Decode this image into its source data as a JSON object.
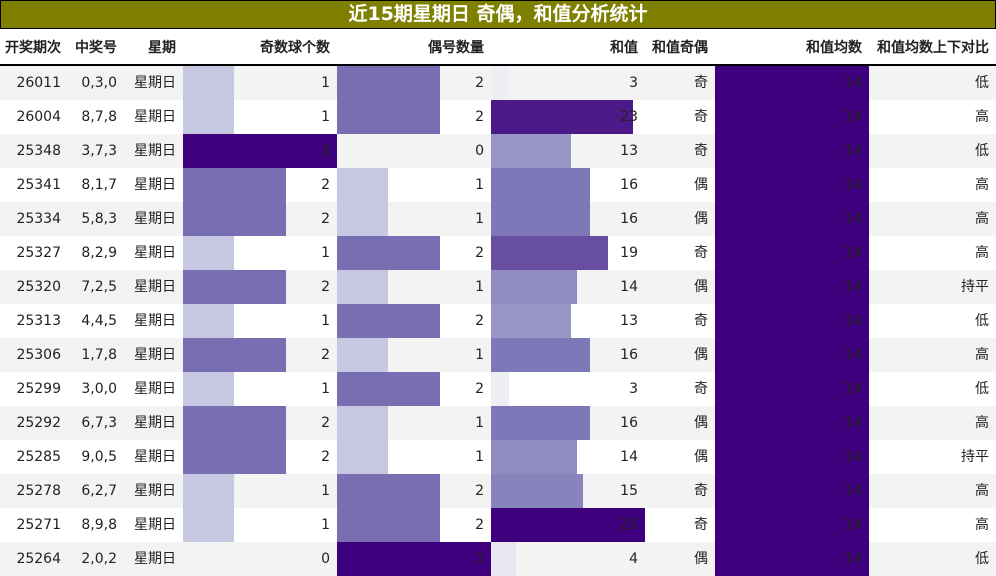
{
  "title": "近15期星期日 奇偶，和值分析统计",
  "colors": {
    "title_bg": "#808000",
    "colormap": "Purples"
  },
  "columns": [
    "开奖期次",
    "中奖号",
    "星期",
    "奇数球个数",
    "偶号数量",
    "和值",
    "和值奇偶",
    "和值均数",
    "和值均数上下对比"
  ],
  "rows": [
    {
      "period": "26011",
      "numbers": "0,3,0",
      "weekday": "星期日",
      "odd": 1,
      "even": 2,
      "sum": 3,
      "sum_parity": "奇",
      "sum_avg": 14,
      "compare": "低"
    },
    {
      "period": "26004",
      "numbers": "8,7,8",
      "weekday": "星期日",
      "odd": 1,
      "even": 2,
      "sum": 23,
      "sum_parity": "奇",
      "sum_avg": 14,
      "compare": "高"
    },
    {
      "period": "25348",
      "numbers": "3,7,3",
      "weekday": "星期日",
      "odd": 3,
      "even": 0,
      "sum": 13,
      "sum_parity": "奇",
      "sum_avg": 14,
      "compare": "低"
    },
    {
      "period": "25341",
      "numbers": "8,1,7",
      "weekday": "星期日",
      "odd": 2,
      "even": 1,
      "sum": 16,
      "sum_parity": "偶",
      "sum_avg": 14,
      "compare": "高"
    },
    {
      "period": "25334",
      "numbers": "5,8,3",
      "weekday": "星期日",
      "odd": 2,
      "even": 1,
      "sum": 16,
      "sum_parity": "偶",
      "sum_avg": 14,
      "compare": "高"
    },
    {
      "period": "25327",
      "numbers": "8,2,9",
      "weekday": "星期日",
      "odd": 1,
      "even": 2,
      "sum": 19,
      "sum_parity": "奇",
      "sum_avg": 14,
      "compare": "高"
    },
    {
      "period": "25320",
      "numbers": "7,2,5",
      "weekday": "星期日",
      "odd": 2,
      "even": 1,
      "sum": 14,
      "sum_parity": "偶",
      "sum_avg": 14,
      "compare": "持平"
    },
    {
      "period": "25313",
      "numbers": "4,4,5",
      "weekday": "星期日",
      "odd": 1,
      "even": 2,
      "sum": 13,
      "sum_parity": "奇",
      "sum_avg": 14,
      "compare": "低"
    },
    {
      "period": "25306",
      "numbers": "1,7,8",
      "weekday": "星期日",
      "odd": 2,
      "even": 1,
      "sum": 16,
      "sum_parity": "偶",
      "sum_avg": 14,
      "compare": "高"
    },
    {
      "period": "25299",
      "numbers": "3,0,0",
      "weekday": "星期日",
      "odd": 1,
      "even": 2,
      "sum": 3,
      "sum_parity": "奇",
      "sum_avg": 14,
      "compare": "低"
    },
    {
      "period": "25292",
      "numbers": "6,7,3",
      "weekday": "星期日",
      "odd": 2,
      "even": 1,
      "sum": 16,
      "sum_parity": "偶",
      "sum_avg": 14,
      "compare": "高"
    },
    {
      "period": "25285",
      "numbers": "9,0,5",
      "weekday": "星期日",
      "odd": 2,
      "even": 1,
      "sum": 14,
      "sum_parity": "偶",
      "sum_avg": 14,
      "compare": "持平"
    },
    {
      "period": "25278",
      "numbers": "6,2,7",
      "weekday": "星期日",
      "odd": 1,
      "even": 2,
      "sum": 15,
      "sum_parity": "奇",
      "sum_avg": 14,
      "compare": "高"
    },
    {
      "period": "25271",
      "numbers": "8,9,8",
      "weekday": "星期日",
      "odd": 1,
      "even": 2,
      "sum": 25,
      "sum_parity": "奇",
      "sum_avg": 14,
      "compare": "高"
    },
    {
      "period": "25264",
      "numbers": "2,0,2",
      "weekday": "星期日",
      "odd": 0,
      "even": 3,
      "sum": 4,
      "sum_parity": "偶",
      "sum_avg": 14,
      "compare": "低"
    }
  ]
}
